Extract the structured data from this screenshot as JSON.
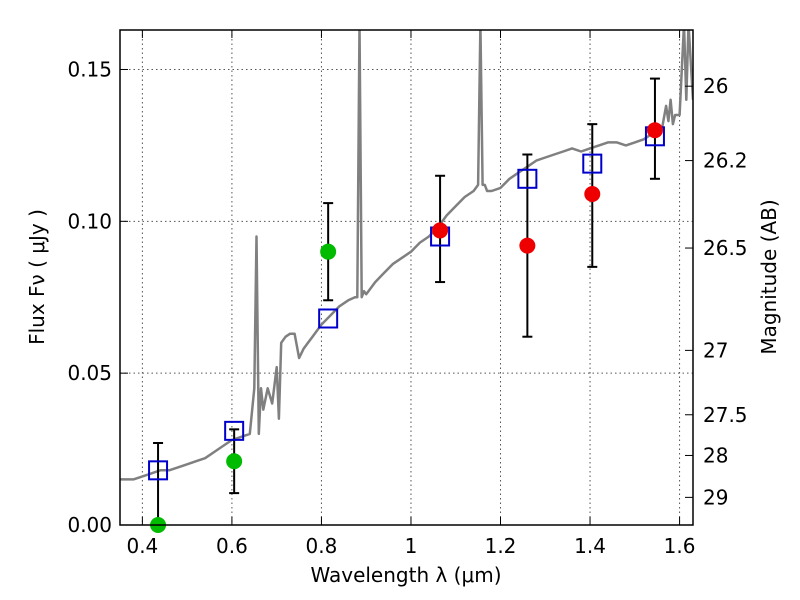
{
  "chart_data": {
    "type": "scatter",
    "title": "",
    "xlabel": "Wavelength  λ (μm)",
    "ylabel": "Flux  Fν  ( μJy )",
    "y2label": "Magnitude (AB)",
    "xlim": [
      0.35,
      1.63
    ],
    "ylim": [
      0.0,
      0.163
    ],
    "grid": true,
    "x_ticks": [
      0.4,
      0.6,
      0.8,
      1.0,
      1.2,
      1.4,
      1.6
    ],
    "x_tick_labels": [
      "0.4",
      "0.6",
      "0.8",
      "1",
      "1.2",
      "1.4",
      "1.6"
    ],
    "y_ticks": [
      0.0,
      0.05,
      0.1,
      0.15
    ],
    "y_tick_labels": [
      "0.00",
      "0.05",
      "0.10",
      "0.15"
    ],
    "y2_ticks": [
      {
        "label": "26",
        "flux": 0.1445
      },
      {
        "label": "26.2",
        "flux": 0.12
      },
      {
        "label": "26.5",
        "flux": 0.0912
      },
      {
        "label": "27",
        "flux": 0.0575
      },
      {
        "label": "27.5",
        "flux": 0.0363
      },
      {
        "label": "28",
        "flux": 0.0229
      },
      {
        "label": "29",
        "flux": 0.0091
      }
    ],
    "colors": {
      "model": "#808080",
      "model_points": "#0000cc",
      "obs_green": "#00bb00",
      "obs_red": "#ee0000",
      "errorbar": "#000000",
      "grid": "#555555"
    },
    "model_spectrum": {
      "name": "",
      "x": [
        0.35,
        0.38,
        0.4,
        0.42,
        0.44,
        0.46,
        0.48,
        0.5,
        0.52,
        0.54,
        0.56,
        0.58,
        0.6,
        0.62,
        0.64,
        0.65,
        0.655,
        0.66,
        0.665,
        0.67,
        0.68,
        0.69,
        0.7,
        0.705,
        0.71,
        0.72,
        0.73,
        0.74,
        0.75,
        0.76,
        0.77,
        0.78,
        0.79,
        0.8,
        0.82,
        0.84,
        0.86,
        0.875,
        0.88,
        0.885,
        0.89,
        0.895,
        0.9,
        0.92,
        0.94,
        0.96,
        0.98,
        1.0,
        1.02,
        1.04,
        1.06,
        1.08,
        1.1,
        1.12,
        1.14,
        1.15,
        1.155,
        1.16,
        1.165,
        1.17,
        1.18,
        1.2,
        1.22,
        1.24,
        1.26,
        1.28,
        1.3,
        1.32,
        1.34,
        1.36,
        1.38,
        1.4,
        1.42,
        1.44,
        1.46,
        1.48,
        1.5,
        1.52,
        1.54,
        1.56,
        1.57,
        1.575,
        1.58,
        1.585,
        1.59,
        1.6,
        1.61,
        1.615,
        1.62,
        1.63
      ],
      "y": [
        0.015,
        0.015,
        0.016,
        0.017,
        0.018,
        0.018,
        0.019,
        0.02,
        0.021,
        0.022,
        0.024,
        0.026,
        0.028,
        0.029,
        0.03,
        0.045,
        0.095,
        0.03,
        0.045,
        0.038,
        0.045,
        0.04,
        0.052,
        0.035,
        0.06,
        0.062,
        0.063,
        0.063,
        0.055,
        0.058,
        0.06,
        0.062,
        0.064,
        0.066,
        0.069,
        0.072,
        0.074,
        0.075,
        0.075,
        0.165,
        0.075,
        0.077,
        0.076,
        0.08,
        0.083,
        0.086,
        0.088,
        0.09,
        0.093,
        0.095,
        0.098,
        0.102,
        0.105,
        0.108,
        0.11,
        0.112,
        0.165,
        0.112,
        0.112,
        0.11,
        0.11,
        0.111,
        0.114,
        0.116,
        0.118,
        0.12,
        0.121,
        0.122,
        0.123,
        0.124,
        0.123,
        0.124,
        0.125,
        0.126,
        0.126,
        0.125,
        0.126,
        0.127,
        0.129,
        0.13,
        0.138,
        0.133,
        0.14,
        0.132,
        0.135,
        0.135,
        0.165,
        0.14,
        0.165,
        0.14
      ]
    },
    "model_points": {
      "name": "",
      "x": [
        0.435,
        0.605,
        0.815,
        1.065,
        1.26,
        1.405,
        1.545
      ],
      "y": [
        0.018,
        0.031,
        0.068,
        0.095,
        0.114,
        0.119,
        0.128
      ]
    },
    "observations": [
      {
        "x": 0.435,
        "y": 0.0,
        "yerr_low": 0.0,
        "yerr_high": 0.027,
        "color": "green"
      },
      {
        "x": 0.605,
        "y": 0.021,
        "yerr_low": 0.0105,
        "yerr_high": 0.0315,
        "color": "green"
      },
      {
        "x": 0.815,
        "y": 0.09,
        "yerr_low": 0.074,
        "yerr_high": 0.106,
        "color": "green"
      },
      {
        "x": 1.065,
        "y": 0.097,
        "yerr_low": 0.08,
        "yerr_high": 0.115,
        "color": "red"
      },
      {
        "x": 1.26,
        "y": 0.092,
        "yerr_low": 0.062,
        "yerr_high": 0.122,
        "color": "red"
      },
      {
        "x": 1.405,
        "y": 0.109,
        "yerr_low": 0.085,
        "yerr_high": 0.132,
        "color": "red"
      },
      {
        "x": 1.545,
        "y": 0.13,
        "yerr_low": 0.114,
        "yerr_high": 0.147,
        "color": "red"
      }
    ]
  }
}
